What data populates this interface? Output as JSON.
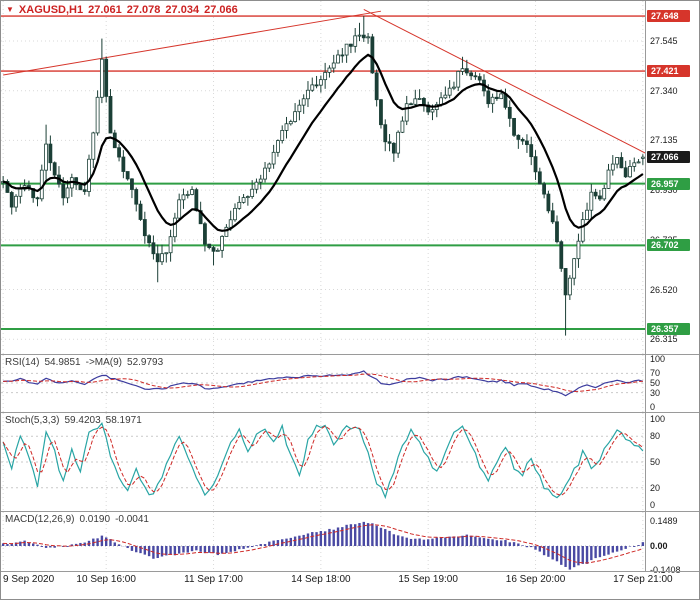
{
  "header": {
    "marker_icon": "▼",
    "symbol": "XAGUSD,H1",
    "open": "27.061",
    "high": "27.078",
    "low": "27.034",
    "close": "27.066"
  },
  "colors": {
    "header_text": "#cc2222",
    "grid": "#d9d9d9",
    "resistance": "#d6352b",
    "support": "#2f9e44",
    "current_badge": "#1a1a1a",
    "candle": "#1b3f36",
    "bull_fill": "#ffffff",
    "ma": "#000000",
    "rsi_line": "#3c3c9e",
    "signal_red": "#cf2a27",
    "stoch_k": "#29a5a5",
    "macd_hist": "#4949a3",
    "trendline": "#d6352b"
  },
  "chart_data": {
    "type": "candlestick",
    "symbol": "XAGUSD",
    "timeframe": "H1",
    "num_candles": 150,
    "price_range": [
      26.25,
      27.71
    ],
    "current_price": 27.066,
    "last_candle": {
      "o": 27.061,
      "h": 27.078,
      "l": 27.034,
      "c": 27.066
    },
    "y_ticks": [
      "27.545",
      "27.340",
      "27.135",
      "26.930",
      "26.725",
      "26.520",
      "26.315"
    ],
    "levels": [
      {
        "label": "27.648",
        "price": 27.648,
        "kind": "resistance"
      },
      {
        "label": "27.421",
        "price": 27.421,
        "kind": "resistance"
      },
      {
        "label": "27.066",
        "price": 27.066,
        "kind": "current"
      },
      {
        "label": "26.957",
        "price": 26.957,
        "kind": "support"
      },
      {
        "label": "26.702",
        "price": 26.702,
        "kind": "support"
      },
      {
        "label": "26.357",
        "price": 26.357,
        "kind": "support"
      }
    ],
    "trendlines": [
      {
        "from": [
          0,
          27.405
        ],
        "to": [
          88,
          27.668
        ]
      },
      {
        "from": [
          84,
          27.675
        ],
        "to": [
          151,
          27.07
        ]
      }
    ],
    "x_ticks": [
      {
        "label": "9 Sep 2020",
        "i": 0
      },
      {
        "label": "10 Sep 16:00",
        "i": 24
      },
      {
        "label": "11 Sep 17:00",
        "i": 49
      },
      {
        "label": "14 Sep 18:00",
        "i": 74
      },
      {
        "label": "15 Sep 19:00",
        "i": 99
      },
      {
        "label": "16 Sep 20:00",
        "i": 124
      },
      {
        "label": "17 Sep 21:00",
        "i": 149
      }
    ],
    "price_path_anchors": [
      [
        0,
        26.96
      ],
      [
        2,
        26.86
      ],
      [
        4,
        26.95
      ],
      [
        8,
        26.9
      ],
      [
        10,
        27.12
      ],
      [
        12,
        27.0
      ],
      [
        14,
        26.9
      ],
      [
        16,
        26.98
      ],
      [
        19,
        26.93
      ],
      [
        22,
        27.3
      ],
      [
        23,
        27.48
      ],
      [
        25,
        27.15
      ],
      [
        28,
        27.0
      ],
      [
        30,
        26.93
      ],
      [
        33,
        26.75
      ],
      [
        36,
        26.63
      ],
      [
        38,
        26.68
      ],
      [
        41,
        26.88
      ],
      [
        44,
        26.92
      ],
      [
        47,
        26.72
      ],
      [
        50,
        26.68
      ],
      [
        53,
        26.82
      ],
      [
        56,
        26.9
      ],
      [
        59,
        26.95
      ],
      [
        62,
        27.05
      ],
      [
        65,
        27.18
      ],
      [
        68,
        27.25
      ],
      [
        71,
        27.33
      ],
      [
        74,
        27.4
      ],
      [
        77,
        27.47
      ],
      [
        80,
        27.52
      ],
      [
        83,
        27.58
      ],
      [
        85,
        27.55
      ],
      [
        87,
        27.3
      ],
      [
        89,
        27.12
      ],
      [
        91,
        27.1
      ],
      [
        94,
        27.27
      ],
      [
        97,
        27.3
      ],
      [
        99,
        27.24
      ],
      [
        102,
        27.3
      ],
      [
        105,
        27.37
      ],
      [
        107,
        27.44
      ],
      [
        110,
        27.4
      ],
      [
        113,
        27.3
      ],
      [
        116,
        27.33
      ],
      [
        119,
        27.15
      ],
      [
        122,
        27.12
      ],
      [
        125,
        26.95
      ],
      [
        128,
        26.8
      ],
      [
        130,
        26.62
      ],
      [
        131,
        26.5
      ],
      [
        133,
        26.65
      ],
      [
        135,
        26.8
      ],
      [
        137,
        26.92
      ],
      [
        139,
        26.88
      ],
      [
        141,
        27.0
      ],
      [
        143,
        27.06
      ],
      [
        145,
        26.99
      ],
      [
        147,
        27.04
      ],
      [
        149,
        27.066
      ]
    ],
    "spikes": [
      {
        "i": 10,
        "high": 27.2
      },
      {
        "i": 23,
        "high": 27.555
      },
      {
        "i": 83,
        "high": 27.62
      },
      {
        "i": 84,
        "high": 27.648
      },
      {
        "i": 107,
        "high": 27.48
      },
      {
        "i": 36,
        "low": 26.55
      },
      {
        "i": 49,
        "low": 26.62
      },
      {
        "i": 131,
        "low": 26.33
      }
    ],
    "indicators": {
      "rsi": {
        "label": "RSI(14)",
        "value": "54.9851",
        "ma_label": "->MA(9)",
        "ma_value": "52.9793",
        "range": [
          0,
          100
        ],
        "grid": [
          70,
          50,
          30
        ],
        "ticks": [
          "100",
          "70",
          "50",
          "30",
          "0"
        ],
        "anchors": [
          [
            0,
            52
          ],
          [
            4,
            58
          ],
          [
            8,
            46
          ],
          [
            10,
            60
          ],
          [
            13,
            50
          ],
          [
            16,
            54
          ],
          [
            19,
            48
          ],
          [
            23,
            67
          ],
          [
            26,
            58
          ],
          [
            30,
            48
          ],
          [
            34,
            36
          ],
          [
            38,
            40
          ],
          [
            42,
            50
          ],
          [
            45,
            46
          ],
          [
            48,
            37
          ],
          [
            52,
            42
          ],
          [
            56,
            50
          ],
          [
            60,
            55
          ],
          [
            64,
            60
          ],
          [
            68,
            63
          ],
          [
            72,
            64
          ],
          [
            76,
            66
          ],
          [
            80,
            68
          ],
          [
            84,
            74
          ],
          [
            86,
            62
          ],
          [
            88,
            50
          ],
          [
            90,
            45
          ],
          [
            94,
            57
          ],
          [
            97,
            60
          ],
          [
            99,
            55
          ],
          [
            103,
            58
          ],
          [
            107,
            63
          ],
          [
            110,
            58
          ],
          [
            113,
            52
          ],
          [
            116,
            55
          ],
          [
            119,
            46
          ],
          [
            122,
            48
          ],
          [
            125,
            40
          ],
          [
            128,
            34
          ],
          [
            131,
            24
          ],
          [
            134,
            38
          ],
          [
            136,
            46
          ],
          [
            138,
            42
          ],
          [
            141,
            52
          ],
          [
            143,
            56
          ],
          [
            145,
            50
          ],
          [
            147,
            54
          ],
          [
            149,
            55
          ]
        ]
      },
      "stoch": {
        "label": "Stoch(5,3,3)",
        "value": "59.4203",
        "signal_value": "58.1971",
        "range": [
          0,
          100
        ],
        "grid": [
          80,
          50,
          20
        ],
        "ticks": [
          "100",
          "80",
          "50",
          "20",
          "0"
        ],
        "anchors": [
          [
            0,
            75
          ],
          [
            2,
            45
          ],
          [
            4,
            80
          ],
          [
            6,
            55
          ],
          [
            8,
            20
          ],
          [
            10,
            85
          ],
          [
            12,
            60
          ],
          [
            14,
            25
          ],
          [
            16,
            65
          ],
          [
            18,
            40
          ],
          [
            20,
            88
          ],
          [
            23,
            92
          ],
          [
            25,
            60
          ],
          [
            27,
            30
          ],
          [
            29,
            15
          ],
          [
            31,
            45
          ],
          [
            33,
            20
          ],
          [
            35,
            10
          ],
          [
            37,
            35
          ],
          [
            39,
            60
          ],
          [
            41,
            82
          ],
          [
            43,
            55
          ],
          [
            45,
            30
          ],
          [
            47,
            12
          ],
          [
            49,
            25
          ],
          [
            51,
            48
          ],
          [
            53,
            75
          ],
          [
            55,
            88
          ],
          [
            57,
            60
          ],
          [
            59,
            80
          ],
          [
            61,
            90
          ],
          [
            63,
            70
          ],
          [
            65,
            92
          ],
          [
            67,
            55
          ],
          [
            69,
            35
          ],
          [
            71,
            75
          ],
          [
            73,
            90
          ],
          [
            75,
            95
          ],
          [
            77,
            70
          ],
          [
            79,
            85
          ],
          [
            81,
            92
          ],
          [
            83,
            88
          ],
          [
            85,
            60
          ],
          [
            87,
            25
          ],
          [
            89,
            12
          ],
          [
            91,
            35
          ],
          [
            93,
            70
          ],
          [
            95,
            88
          ],
          [
            97,
            75
          ],
          [
            99,
            55
          ],
          [
            101,
            38
          ],
          [
            103,
            60
          ],
          [
            105,
            85
          ],
          [
            107,
            92
          ],
          [
            109,
            70
          ],
          [
            111,
            45
          ],
          [
            113,
            25
          ],
          [
            115,
            50
          ],
          [
            117,
            70
          ],
          [
            119,
            45
          ],
          [
            121,
            35
          ],
          [
            123,
            55
          ],
          [
            125,
            30
          ],
          [
            127,
            15
          ],
          [
            129,
            8
          ],
          [
            131,
            20
          ],
          [
            133,
            40
          ],
          [
            135,
            60
          ],
          [
            137,
            45
          ],
          [
            139,
            55
          ],
          [
            141,
            72
          ],
          [
            143,
            85
          ],
          [
            145,
            80
          ],
          [
            147,
            70
          ],
          [
            149,
            59
          ]
        ]
      },
      "macd": {
        "label": "MACD(12,26,9)",
        "value": "0.0190",
        "signal_value": "-0.0041",
        "ticks": [
          "0.1489",
          "0.00",
          "-0.1408"
        ],
        "tick_values": [
          0.1489,
          0,
          -0.1408
        ],
        "range": [
          -0.1408,
          0.1489
        ],
        "anchors": [
          [
            0,
            0.01
          ],
          [
            5,
            0.03
          ],
          [
            10,
            -0.01
          ],
          [
            15,
            0.0
          ],
          [
            20,
            0.03
          ],
          [
            23,
            0.06
          ],
          [
            27,
            0.01
          ],
          [
            31,
            -0.04
          ],
          [
            35,
            -0.07
          ],
          [
            40,
            -0.05
          ],
          [
            45,
            -0.03
          ],
          [
            50,
            -0.05
          ],
          [
            55,
            -0.02
          ],
          [
            60,
            0.01
          ],
          [
            65,
            0.04
          ],
          [
            70,
            0.07
          ],
          [
            75,
            0.09
          ],
          [
            80,
            0.12
          ],
          [
            84,
            0.148
          ],
          [
            88,
            0.11
          ],
          [
            92,
            0.06
          ],
          [
            96,
            0.04
          ],
          [
            100,
            0.045
          ],
          [
            104,
            0.055
          ],
          [
            108,
            0.065
          ],
          [
            112,
            0.05
          ],
          [
            116,
            0.035
          ],
          [
            120,
            0.015
          ],
          [
            124,
            -0.02
          ],
          [
            128,
            -0.08
          ],
          [
            132,
            -0.14
          ],
          [
            136,
            -0.1
          ],
          [
            140,
            -0.055
          ],
          [
            144,
            -0.025
          ],
          [
            147,
            0.0
          ],
          [
            149,
            0.019
          ]
        ]
      }
    }
  }
}
